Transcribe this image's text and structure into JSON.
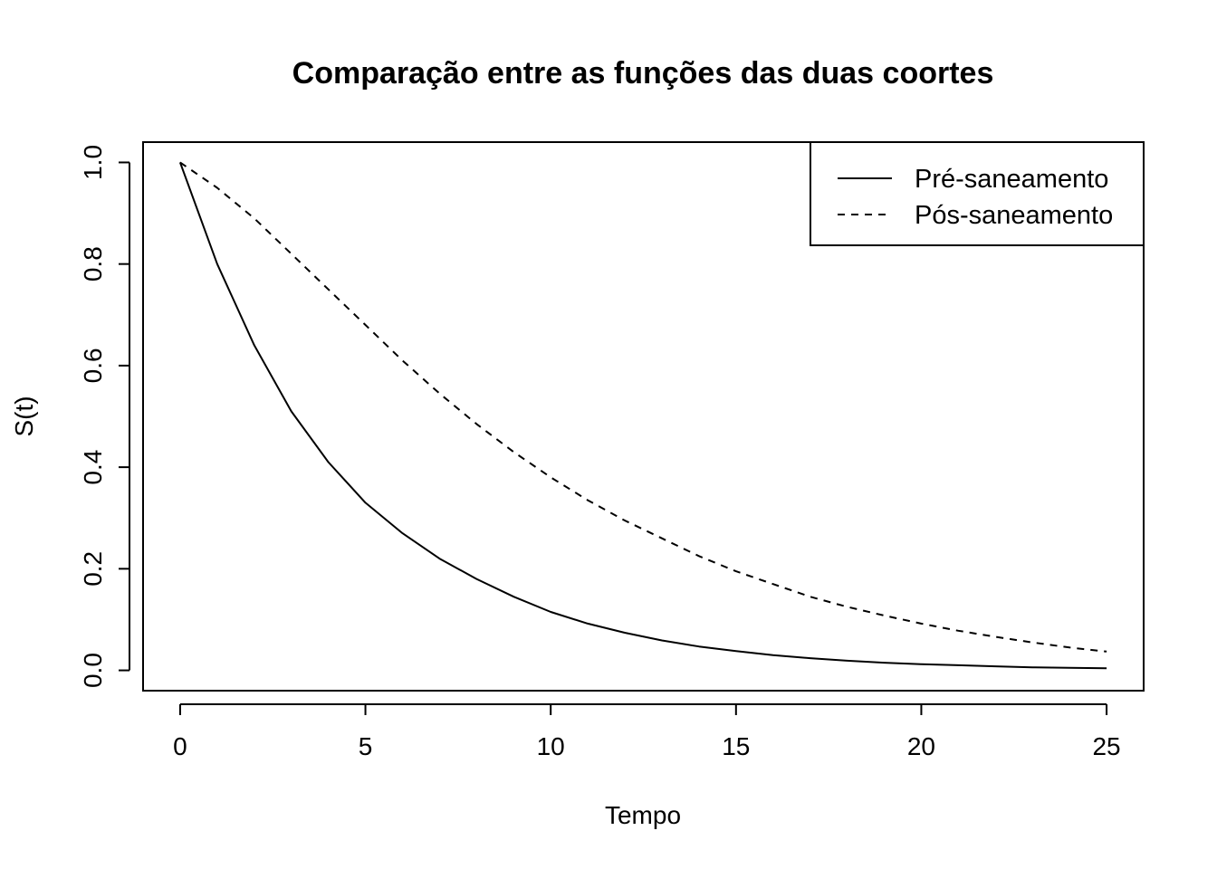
{
  "chart_data": {
    "type": "line",
    "title": "Comparação entre as funções das duas coortes",
    "xlabel": "Tempo",
    "ylabel": "S(t)",
    "xlim": [
      -1,
      26
    ],
    "ylim": [
      -0.04,
      1.04
    ],
    "x_ticks": [
      "0",
      "5",
      "10",
      "15",
      "20",
      "25"
    ],
    "y_ticks": [
      "0.0",
      "0.2",
      "0.4",
      "0.6",
      "0.8",
      "1.0"
    ],
    "grid": false,
    "legend_position": "top-right",
    "x": [
      0,
      1,
      2,
      3,
      4,
      5,
      6,
      7,
      8,
      9,
      10,
      11,
      12,
      13,
      14,
      15,
      16,
      17,
      18,
      19,
      20,
      21,
      22,
      23,
      24,
      25
    ],
    "series": [
      {
        "name": "Pré-saneamento",
        "line_style": "solid",
        "color": "#000000",
        "values": [
          1.0,
          0.8,
          0.64,
          0.51,
          0.41,
          0.33,
          0.27,
          0.22,
          0.18,
          0.145,
          0.115,
          0.092,
          0.074,
          0.059,
          0.047,
          0.038,
          0.03,
          0.024,
          0.019,
          0.015,
          0.012,
          0.01,
          0.008,
          0.006,
          0.005,
          0.004
        ]
      },
      {
        "name": "Pós-saneamento",
        "line_style": "dashed",
        "color": "#000000",
        "values": [
          1.0,
          0.95,
          0.89,
          0.82,
          0.75,
          0.68,
          0.61,
          0.545,
          0.485,
          0.43,
          0.38,
          0.335,
          0.295,
          0.26,
          0.225,
          0.195,
          0.17,
          0.145,
          0.125,
          0.108,
          0.092,
          0.078,
          0.066,
          0.055,
          0.045,
          0.037
        ]
      }
    ]
  }
}
